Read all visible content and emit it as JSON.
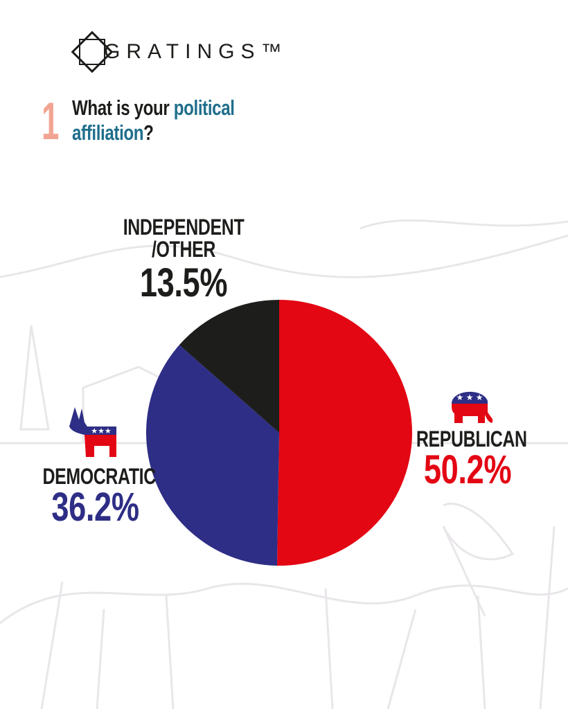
{
  "brand": "GRATINGS™",
  "question": {
    "number": "1",
    "parts": [
      "What is your",
      "political",
      "affiliation",
      "?"
    ]
  },
  "chart_data": {
    "type": "pie",
    "categories": [
      "REPUBLICAN",
      "DEMOCRATIC",
      "INDEPENDENT\n/OTHER"
    ],
    "values": [
      50.2,
      36.2,
      13.5
    ],
    "value_labels": [
      "50.2%",
      "36.2%",
      "13.5%"
    ],
    "colors": [
      "#e30613",
      "#2e2e86",
      "#1d1d1b"
    ]
  }
}
